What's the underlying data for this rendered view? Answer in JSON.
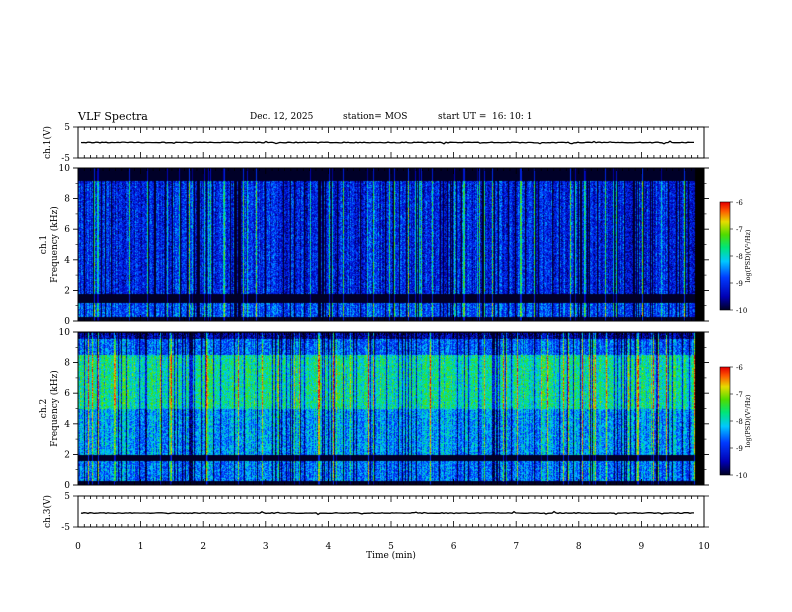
{
  "header": {
    "title": "VLF Spectra",
    "date": "Dec. 12, 2025",
    "station": "station= MOS",
    "start_label": "start  UT  =",
    "start_time": "16: 10: 1"
  },
  "colors": {
    "background": "#ffffff",
    "axis": "#000000",
    "spectrogram_floor": "#000010"
  },
  "chart_data": [
    {
      "type": "line",
      "name": "ch1-waveform",
      "ylabel": "ch.1(V)",
      "ylim": [
        -5,
        5
      ],
      "yticks": [
        "5",
        "-5"
      ],
      "xlim": [
        0,
        10
      ],
      "series": [
        {
          "name": "ch.1",
          "baseline": 0
        }
      ]
    },
    {
      "type": "heatmap",
      "name": "ch1-spectrogram",
      "ylabel_top": "ch.1",
      "ylabel": "Frequency (kHz)",
      "ylim": [
        0,
        10
      ],
      "yticks": [
        "0",
        "2",
        "4",
        "6",
        "8",
        "10"
      ],
      "xlim": [
        0,
        10
      ],
      "data_end_min": 9.85,
      "colorbar": {
        "label": "log(PSD)(V²/Hz)",
        "range": [
          -10,
          -6
        ],
        "ticks": [
          "-6",
          "-7",
          "-8",
          "-9",
          "-10"
        ]
      },
      "bands": [
        {
          "from": 0.0,
          "to": 0.3,
          "level": -10
        },
        {
          "from": 0.3,
          "to": 1.2,
          "level": -8.8
        },
        {
          "from": 1.2,
          "to": 1.8,
          "level": -10
        },
        {
          "from": 1.8,
          "to": 9.2,
          "level": -9.1
        },
        {
          "from": 9.2,
          "to": 10.0,
          "level": -10
        }
      ]
    },
    {
      "type": "heatmap",
      "name": "ch2-spectrogram",
      "ylabel_top": "ch.2",
      "ylabel": "Frequency (kHz)",
      "ylim": [
        0,
        10
      ],
      "yticks": [
        "0",
        "2",
        "4",
        "6",
        "8",
        "10"
      ],
      "xlim": [
        0,
        10
      ],
      "data_end_min": 9.85,
      "colorbar": {
        "label": "log(PSD)(V²/Hz)",
        "range": [
          -10,
          -6
        ],
        "ticks": [
          "-6",
          "-7",
          "-8",
          "-9",
          "-10"
        ]
      },
      "bands": [
        {
          "from": 0.0,
          "to": 0.3,
          "level": -10
        },
        {
          "from": 0.3,
          "to": 1.6,
          "level": -8.6
        },
        {
          "from": 1.6,
          "to": 2.0,
          "level": -10
        },
        {
          "from": 2.0,
          "to": 5.0,
          "level": -8.4
        },
        {
          "from": 5.0,
          "to": 8.5,
          "level": -7.8
        },
        {
          "from": 8.5,
          "to": 9.6,
          "level": -8.7
        },
        {
          "from": 9.6,
          "to": 10.0,
          "level": -9.6
        }
      ]
    },
    {
      "type": "line",
      "name": "ch3-waveform",
      "ylabel": "ch.3(V)",
      "ylim": [
        -5,
        5
      ],
      "yticks": [
        "5",
        "-5"
      ],
      "xlim": [
        0,
        10
      ],
      "series": [
        {
          "name": "ch.3",
          "baseline": -0.5
        }
      ]
    }
  ],
  "xaxis": {
    "label": "Time  (min)",
    "ticks": [
      "0",
      "1",
      "2",
      "3",
      "4",
      "5",
      "6",
      "7",
      "8",
      "9",
      "10"
    ]
  }
}
